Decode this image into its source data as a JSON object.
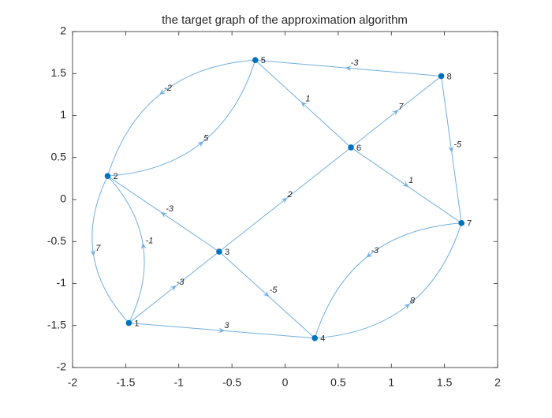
{
  "chart_data": {
    "type": "graph",
    "title": "the target graph of the approximation algorithm",
    "xlim": [
      -2,
      2
    ],
    "ylim": [
      -2,
      2
    ],
    "xticks": [
      -2,
      -1.5,
      -1,
      -0.5,
      0,
      0.5,
      1,
      1.5,
      2
    ],
    "yticks": [
      -2,
      -1.5,
      -1,
      -0.5,
      0,
      0.5,
      1,
      1.5,
      2
    ],
    "node_color": "#0072bd",
    "edge_color": "#72afe0",
    "nodes": [
      {
        "label": "1",
        "x": -1.47,
        "y": -1.47
      },
      {
        "label": "2",
        "x": -1.67,
        "y": 0.28
      },
      {
        "label": "3",
        "x": -0.62,
        "y": -0.62
      },
      {
        "label": "4",
        "x": 0.28,
        "y": -1.65
      },
      {
        "label": "5",
        "x": -0.28,
        "y": 1.66
      },
      {
        "label": "6",
        "x": 0.62,
        "y": 0.62
      },
      {
        "label": "7",
        "x": 1.66,
        "y": -0.28
      },
      {
        "label": "8",
        "x": 1.47,
        "y": 1.47
      }
    ],
    "edges": [
      {
        "source": 1,
        "target": 4,
        "weight": 3
      },
      {
        "source": 1,
        "target": 3,
        "weight": -3
      },
      {
        "source": 1,
        "target": 2,
        "weight": -1
      },
      {
        "source": 2,
        "target": 1,
        "weight": 7
      },
      {
        "source": 2,
        "target": 5,
        "weight": 5
      },
      {
        "source": 5,
        "target": 2,
        "weight": -2
      },
      {
        "source": 3,
        "target": 2,
        "weight": -3
      },
      {
        "source": 3,
        "target": 6,
        "weight": 2
      },
      {
        "source": 3,
        "target": 4,
        "weight": -5
      },
      {
        "source": 6,
        "target": 5,
        "weight": 1
      },
      {
        "source": 6,
        "target": 8,
        "weight": 7
      },
      {
        "source": 6,
        "target": 7,
        "weight": 1
      },
      {
        "source": 8,
        "target": 5,
        "weight": -3
      },
      {
        "source": 8,
        "target": 7,
        "weight": -5
      },
      {
        "source": 7,
        "target": 4,
        "weight": -3
      },
      {
        "source": 4,
        "target": 7,
        "weight": 8
      }
    ]
  }
}
